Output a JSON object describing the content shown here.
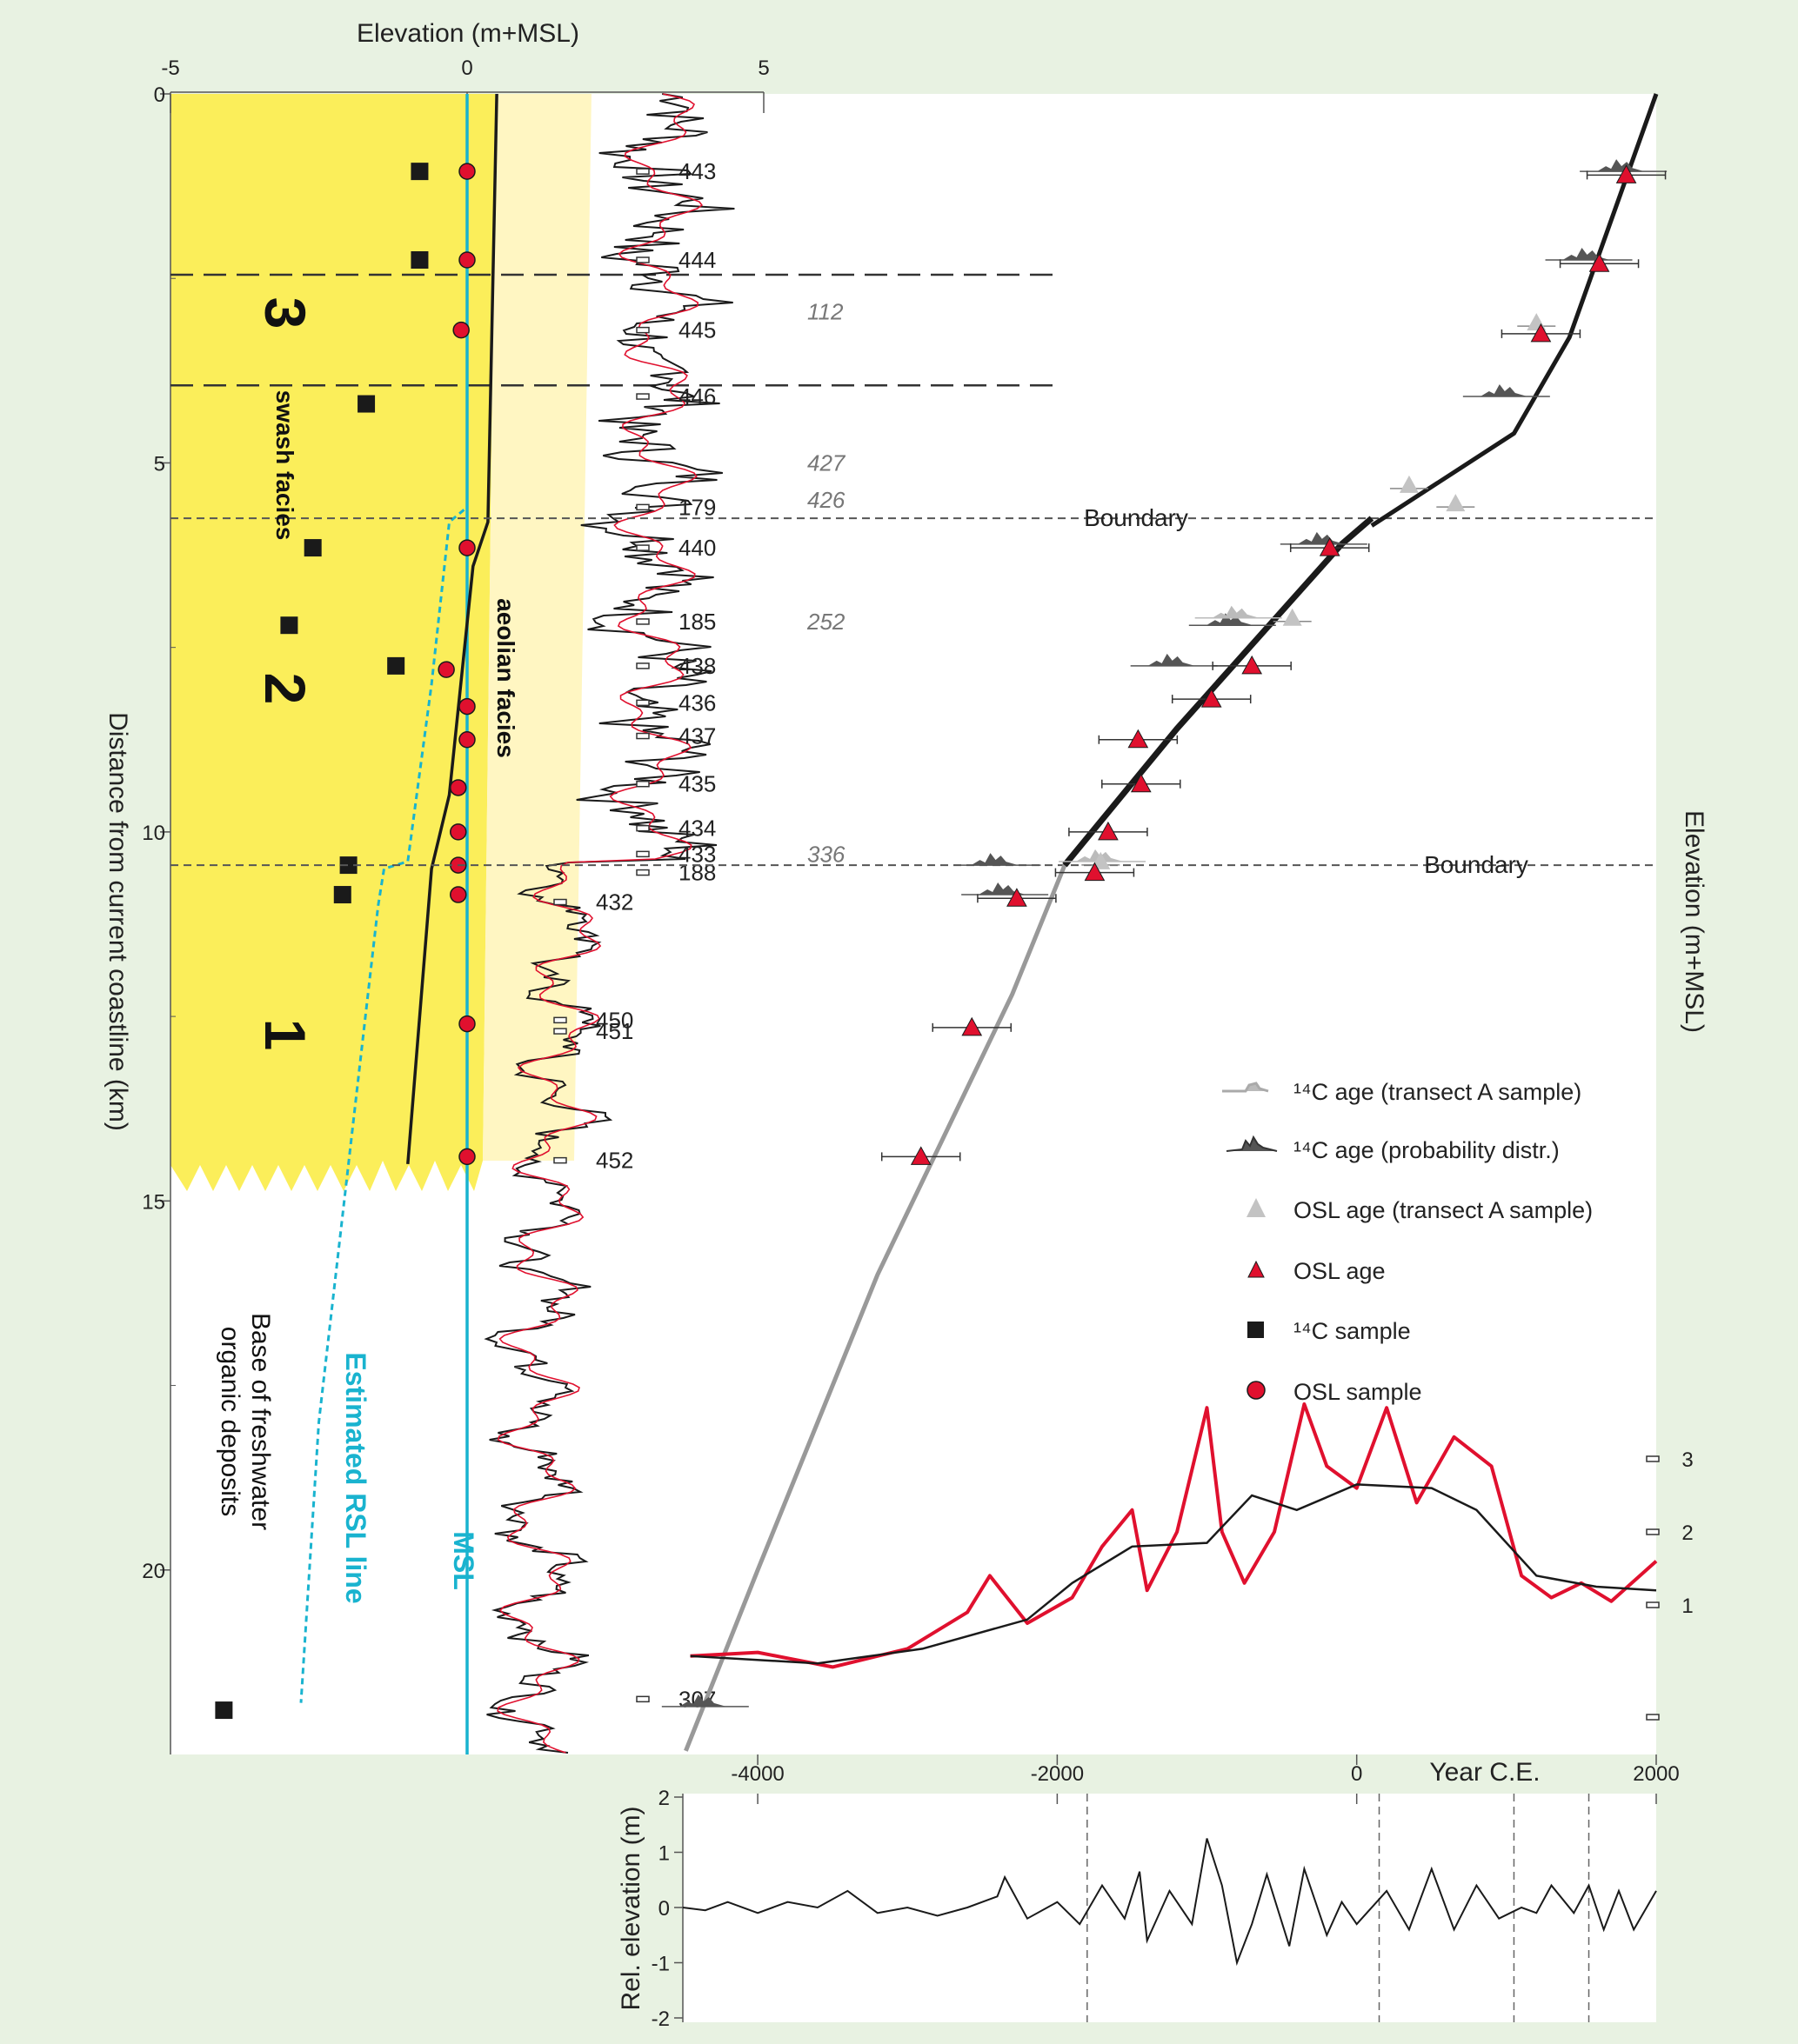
{
  "chart_data": [
    {
      "type": "line",
      "panel": "transect",
      "xlabel": "Elevation (m+MSL)",
      "ylabel": "Distance from current coastline (km)",
      "xlim": [
        -5,
        5
      ],
      "ylim": [
        0,
        22.5
      ],
      "x_ticks": [
        "-5",
        "0",
        "5"
      ],
      "y_ticks": [
        "0",
        "5",
        "10",
        "15",
        "20"
      ],
      "unit_labels": [
        "3",
        "2",
        "1"
      ],
      "facies_labels": [
        "swash facies",
        "aeolian facies"
      ],
      "other_labels": [
        "Base of freshwater",
        "organic deposits"
      ],
      "rsl_label": "Estimated RSL line",
      "msl_label": "MSL",
      "c14_samples": [
        {
          "x": -0.8,
          "y": 1.05
        },
        {
          "x": -0.8,
          "y": 2.25
        },
        {
          "x": -1.7,
          "y": 4.2
        },
        {
          "x": -2.6,
          "y": 6.15
        },
        {
          "x": -3.0,
          "y": 7.2
        },
        {
          "x": -1.2,
          "y": 7.75
        },
        {
          "x": -2.0,
          "y": 10.45
        },
        {
          "x": -2.1,
          "y": 10.85
        },
        {
          "x": -4.1,
          "y": 21.9
        }
      ],
      "osl_samples": [
        {
          "x": 0,
          "y": 1.05
        },
        {
          "x": 0,
          "y": 2.25
        },
        {
          "x": -0.1,
          "y": 3.2
        },
        {
          "x": 0,
          "y": 6.15
        },
        {
          "x": -0.35,
          "y": 7.8
        },
        {
          "x": 0,
          "y": 8.3
        },
        {
          "x": 0,
          "y": 8.75
        },
        {
          "x": -0.15,
          "y": 9.4
        },
        {
          "x": -0.15,
          "y": 10.0
        },
        {
          "x": -0.15,
          "y": 10.45
        },
        {
          "x": -0.15,
          "y": 10.85
        },
        {
          "x": 0,
          "y": 12.6
        },
        {
          "x": 0,
          "y": 14.4
        }
      ],
      "rsl_line": [
        [
          0,
          0
        ],
        [
          0,
          5.6
        ],
        [
          -0.3,
          5.8
        ],
        [
          -0.6,
          8.0
        ],
        [
          -1.0,
          10.4
        ],
        [
          -1.4,
          10.5
        ],
        [
          -1.5,
          11.0
        ],
        [
          -2.5,
          18.0
        ],
        [
          -2.8,
          21.8
        ]
      ],
      "beach_front_line": [
        [
          0.5,
          0
        ],
        [
          0.35,
          5.8
        ],
        [
          0.1,
          6.4
        ],
        [
          -0.3,
          9.5
        ],
        [
          -0.6,
          10.5
        ],
        [
          -0.65,
          11.0
        ],
        [
          -1.0,
          14.5
        ]
      ],
      "sample_ids": [
        {
          "label": "443",
          "y": 1.05
        },
        {
          "label": "444",
          "y": 2.25
        },
        {
          "label": "445",
          "y": 3.2
        },
        {
          "label": "446",
          "y": 4.1
        },
        {
          "label": "179",
          "y": 5.6
        },
        {
          "label": "440",
          "y": 6.15
        },
        {
          "label": "185",
          "y": 7.15
        },
        {
          "label": "438",
          "y": 7.75
        },
        {
          "label": "436",
          "y": 8.25
        },
        {
          "label": "437",
          "y": 8.7
        },
        {
          "label": "435",
          "y": 9.35
        },
        {
          "label": "434",
          "y": 9.95
        },
        {
          "label": "433",
          "y": 10.3
        },
        {
          "label": "188",
          "y": 10.55
        },
        {
          "label": "432",
          "y": 10.95
        },
        {
          "label": "450",
          "y": 12.55
        },
        {
          "label": "451",
          "y": 12.7
        },
        {
          "label": "452",
          "y": 14.45
        },
        {
          "label": "307",
          "y": 21.75
        }
      ],
      "italic_labels": [
        {
          "label": "112",
          "y": 2.95
        },
        {
          "label": "427",
          "y": 5.0
        },
        {
          "label": "426",
          "y": 5.5
        },
        {
          "label": "252",
          "y": 7.15
        },
        {
          "label": "336",
          "y": 10.3
        }
      ]
    },
    {
      "type": "scatter",
      "panel": "age-depth",
      "xlabel": "Year C.E.",
      "ylabel": "Elevation (m+MSL)",
      "xlim": [
        -4500,
        2000
      ],
      "x_ticks": [
        "-4000",
        "-2000",
        "0",
        "2000"
      ],
      "right_ticks": [
        "3",
        "2",
        "1"
      ],
      "boundary_label": "Boundary",
      "boundaries_km": [
        5.75,
        10.45
      ],
      "osl_ages": [
        {
          "year": 1800,
          "km": 1.1
        },
        {
          "year": 1620,
          "km": 2.3
        },
        {
          "year": 1230,
          "km": 3.25
        },
        {
          "year": -180,
          "km": 6.15
        },
        {
          "year": -700,
          "km": 7.75
        },
        {
          "year": -970,
          "km": 8.2
        },
        {
          "year": -1460,
          "km": 8.75
        },
        {
          "year": -1440,
          "km": 9.35
        },
        {
          "year": -1660,
          "km": 10.0
        },
        {
          "year": -1750,
          "km": 10.55
        },
        {
          "year": -2270,
          "km": 10.9
        },
        {
          "year": -2570,
          "km": 12.65
        },
        {
          "year": -2910,
          "km": 14.4
        }
      ],
      "osl_ages_transect_a": [
        {
          "year": 1200,
          "km": 3.1
        },
        {
          "year": 350,
          "km": 5.3
        },
        {
          "year": 660,
          "km": 5.55
        },
        {
          "year": -430,
          "km": 7.1
        },
        {
          "year": -1710,
          "km": 10.4
        }
      ],
      "c14_ages": [
        {
          "year": 1780,
          "km": 1.05
        },
        {
          "year": 1550,
          "km": 2.25
        },
        {
          "year": 1000,
          "km": 4.1
        },
        {
          "year": -220,
          "km": 6.1
        },
        {
          "year": -830,
          "km": 7.2
        },
        {
          "year": -1220,
          "km": 7.75
        },
        {
          "year": -2400,
          "km": 10.45
        },
        {
          "year": -2350,
          "km": 10.85
        },
        {
          "year": -4350,
          "km": 21.85
        }
      ],
      "c14_ages_transect_a": [
        {
          "year": -790,
          "km": 7.1
        },
        {
          "year": -1700,
          "km": 10.4
        }
      ],
      "trend_black": [
        [
          2000,
          0
        ],
        [
          1420,
          3.3
        ],
        [
          1050,
          4.6
        ],
        [
          100,
          5.85
        ]
      ],
      "trend_black_thick": [
        [
          100,
          5.75
        ],
        [
          -100,
          6.1
        ],
        [
          -1200,
          8.6
        ],
        [
          -1950,
          10.45
        ]
      ],
      "trend_gray": [
        [
          -1950,
          10.45
        ],
        [
          -2300,
          12.2
        ],
        [
          -3200,
          16.0
        ],
        [
          -4000,
          20.0
        ],
        [
          -4480,
          22.45
        ]
      ],
      "elevation_series_smooth": [
        [
          -4450,
          0.3
        ],
        [
          -3600,
          0.2
        ],
        [
          -2900,
          0.4
        ],
        [
          -2200,
          0.8
        ],
        [
          -1900,
          1.3
        ],
        [
          -1500,
          1.8
        ],
        [
          -1000,
          1.85
        ],
        [
          -700,
          2.5
        ],
        [
          -400,
          2.3
        ],
        [
          0,
          2.65
        ],
        [
          500,
          2.6
        ],
        [
          800,
          2.3
        ],
        [
          1200,
          1.4
        ],
        [
          1600,
          1.25
        ],
        [
          2000,
          1.2
        ]
      ],
      "elevation_series_detail": [
        [
          -4450,
          0.3
        ],
        [
          -4000,
          0.35
        ],
        [
          -3500,
          0.15
        ],
        [
          -3000,
          0.4
        ],
        [
          -2600,
          0.9
        ],
        [
          -2450,
          1.4
        ],
        [
          -2200,
          0.75
        ],
        [
          -1900,
          1.1
        ],
        [
          -1700,
          1.8
        ],
        [
          -1500,
          2.3
        ],
        [
          -1400,
          1.2
        ],
        [
          -1200,
          2.0
        ],
        [
          -1000,
          3.7
        ],
        [
          -900,
          2.0
        ],
        [
          -750,
          1.3
        ],
        [
          -550,
          2.0
        ],
        [
          -350,
          3.75
        ],
        [
          -200,
          2.9
        ],
        [
          0,
          2.6
        ],
        [
          200,
          3.7
        ],
        [
          400,
          2.4
        ],
        [
          650,
          3.3
        ],
        [
          900,
          2.9
        ],
        [
          1100,
          1.4
        ],
        [
          1300,
          1.1
        ],
        [
          1500,
          1.3
        ],
        [
          1700,
          1.05
        ],
        [
          2000,
          1.6
        ]
      ],
      "legend": [
        {
          "symbol": "c14-transect",
          "label": "¹⁴C age (transect A sample)"
        },
        {
          "symbol": "c14-prob",
          "label": "¹⁴C age (probability distr.)"
        },
        {
          "symbol": "osl-transect",
          "label": "OSL age (transect A sample)"
        },
        {
          "symbol": "osl-age",
          "label": "OSL age"
        },
        {
          "symbol": "c14-sample",
          "label": "¹⁴C sample"
        },
        {
          "symbol": "osl-sample",
          "label": "OSL sample"
        }
      ],
      "legend_position": "right-middle"
    },
    {
      "type": "line",
      "panel": "residual",
      "xlabel": "",
      "ylabel": "Rel. elevation (m)",
      "xlim": [
        -4500,
        2000
      ],
      "ylim": [
        -2,
        2
      ],
      "y_ticks": [
        "2",
        "1",
        "0",
        "-1",
        "-2"
      ],
      "vertical_dashes": [
        -1800,
        150,
        1050,
        1550
      ],
      "series": [
        [
          -4500,
          0.0
        ],
        [
          -4350,
          -0.05
        ],
        [
          -4200,
          0.1
        ],
        [
          -4000,
          -0.1
        ],
        [
          -3800,
          0.1
        ],
        [
          -3600,
          0.0
        ],
        [
          -3400,
          0.3
        ],
        [
          -3200,
          -0.1
        ],
        [
          -3000,
          0.0
        ],
        [
          -2800,
          -0.15
        ],
        [
          -2600,
          0.0
        ],
        [
          -2400,
          0.2
        ],
        [
          -2350,
          0.55
        ],
        [
          -2200,
          -0.2
        ],
        [
          -2000,
          0.1
        ],
        [
          -1850,
          -0.3
        ],
        [
          -1700,
          0.4
        ],
        [
          -1550,
          -0.2
        ],
        [
          -1450,
          0.65
        ],
        [
          -1400,
          -0.6
        ],
        [
          -1250,
          0.3
        ],
        [
          -1100,
          -0.3
        ],
        [
          -1000,
          1.25
        ],
        [
          -900,
          0.4
        ],
        [
          -800,
          -1.0
        ],
        [
          -700,
          -0.3
        ],
        [
          -600,
          0.6
        ],
        [
          -450,
          -0.7
        ],
        [
          -350,
          0.7
        ],
        [
          -200,
          -0.5
        ],
        [
          -100,
          0.1
        ],
        [
          0,
          -0.3
        ],
        [
          200,
          0.3
        ],
        [
          350,
          -0.4
        ],
        [
          500,
          0.7
        ],
        [
          650,
          -0.4
        ],
        [
          800,
          0.4
        ],
        [
          950,
          -0.2
        ],
        [
          1100,
          0.0
        ],
        [
          1200,
          -0.1
        ],
        [
          1300,
          0.4
        ],
        [
          1450,
          -0.1
        ],
        [
          1550,
          0.4
        ],
        [
          1650,
          -0.4
        ],
        [
          1750,
          0.3
        ],
        [
          1850,
          -0.4
        ],
        [
          2000,
          0.3
        ]
      ]
    }
  ]
}
